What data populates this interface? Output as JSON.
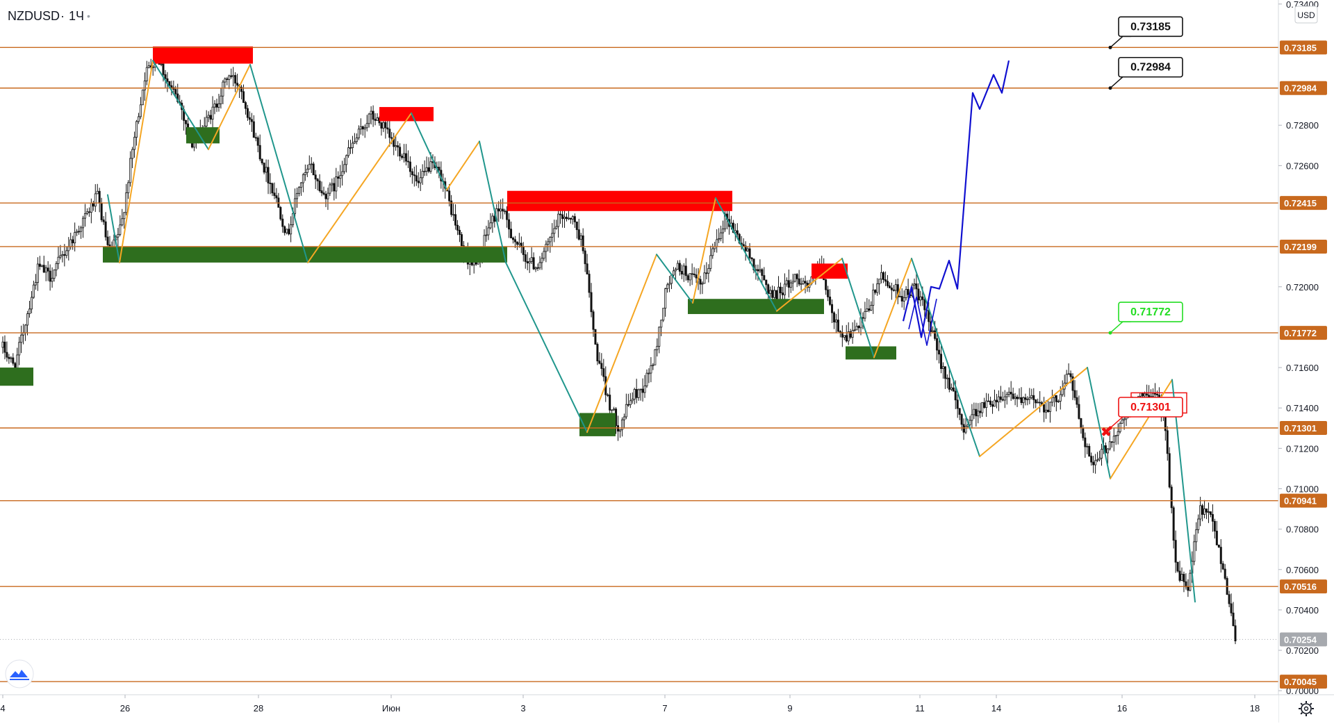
{
  "header": {
    "symbol": "NZDUSD",
    "separator": "·",
    "interval": "1Ч",
    "dot": "•"
  },
  "currency_button": {
    "label": "USD"
  },
  "colors": {
    "level_line": "#c8691e",
    "price_tag_bg": "#c8691e",
    "last_price_tag_bg": "#a6a9ae",
    "supply_zone": "#ff0000",
    "demand_zone": "#2e6e1e",
    "zigzag_up": "#f5a623",
    "zigzag_down": "#20968c",
    "projection": "#1010d0",
    "candle": "#111111",
    "callout_green": "#22dd22",
    "callout_red": "#ee1111",
    "callout_black": "#111111"
  },
  "chart_data": {
    "type": "candlestick",
    "symbol": "NZDUSD",
    "interval": "1Ч",
    "ylim": [
      0.6998,
      0.7342
    ],
    "price_axis_ticks": [
      "0.73400",
      "0.72800",
      "0.72600",
      "0.72000",
      "0.71600",
      "0.71400",
      "0.71200",
      "0.71000",
      "0.70800",
      "0.70600",
      "0.70400",
      "0.70200",
      "0.70000"
    ],
    "time_axis_labels": [
      "4",
      "26",
      "28",
      "Июн",
      "3",
      "7",
      "9",
      "11",
      "14",
      "16",
      "18"
    ],
    "horizontal_levels": [
      "0.73185",
      "0.72984",
      "0.72415",
      "0.72199",
      "0.71772",
      "0.71301",
      "0.70941",
      "0.70516",
      "0.70045"
    ],
    "last_price": "0.70254",
    "callouts": [
      {
        "label": "0.73185",
        "style": "black"
      },
      {
        "label": "0.72984",
        "style": "black"
      },
      {
        "label": "0.71772",
        "style": "green"
      },
      {
        "label": "0.71301",
        "style": "red"
      }
    ],
    "price_path": [
      0.717,
      0.716,
      0.7185,
      0.721,
      0.7205,
      0.7215,
      0.7225,
      0.7235,
      0.7245,
      0.7215,
      0.723,
      0.727,
      0.7305,
      0.7315,
      0.73,
      0.729,
      0.727,
      0.728,
      0.729,
      0.7305,
      0.73,
      0.728,
      0.726,
      0.7245,
      0.7225,
      0.725,
      0.726,
      0.7245,
      0.725,
      0.7265,
      0.7275,
      0.7285,
      0.728,
      0.727,
      0.7265,
      0.725,
      0.726,
      0.7255,
      0.7235,
      0.7215,
      0.721,
      0.723,
      0.724,
      0.7225,
      0.7215,
      0.721,
      0.722,
      0.7235,
      0.7235,
      0.722,
      0.717,
      0.7145,
      0.713,
      0.7145,
      0.715,
      0.7165,
      0.72,
      0.721,
      0.7205,
      0.72,
      0.722,
      0.7235,
      0.7225,
      0.7215,
      0.7205,
      0.7195,
      0.72,
      0.7205,
      0.72,
      0.721,
      0.7185,
      0.7175,
      0.7178,
      0.7188,
      0.7205,
      0.72,
      0.7195,
      0.72,
      0.7185,
      0.7165,
      0.715,
      0.713,
      0.7138,
      0.7142,
      0.7145,
      0.7148,
      0.7142,
      0.7145,
      0.714,
      0.7145,
      0.7158,
      0.713,
      0.711,
      0.712,
      0.7128,
      0.714,
      0.7145,
      0.7148,
      0.7138,
      0.706,
      0.705,
      0.709,
      0.7085,
      0.706,
      0.7026
    ],
    "demand_zones": [
      {
        "price_top": 0.716,
        "price_bottom": 0.7151
      },
      {
        "price_top": 0.72199,
        "price_bottom": 0.7212
      },
      {
        "price_top": 0.7279,
        "price_bottom": 0.7271
      },
      {
        "price_top": 0.71375,
        "price_bottom": 0.7126
      },
      {
        "price_top": 0.7194,
        "price_bottom": 0.71865
      },
      {
        "price_top": 0.71705,
        "price_bottom": 0.7164
      }
    ],
    "supply_zones": [
      {
        "price_top": 0.7319,
        "price_bottom": 0.73105
      },
      {
        "price_top": 0.7289,
        "price_bottom": 0.7282
      },
      {
        "price_top": 0.72475,
        "price_bottom": 0.72375
      },
      {
        "price_top": 0.72115,
        "price_bottom": 0.7204
      },
      {
        "price_top": 0.71475,
        "price_bottom": 0.71375
      }
    ],
    "zigzag_points": [
      0.72455,
      0.7212,
      0.7312,
      0.7268,
      0.731,
      0.7212,
      0.7286,
      0.7248,
      0.7272,
      0.7212,
      0.7128,
      0.7216,
      0.7192,
      0.7244,
      0.7188,
      0.7214,
      0.7165,
      0.7214,
      0.7116,
      0.716,
      0.7105,
      0.7154,
      0.7044
    ],
    "projection_points": [
      0.7183,
      0.72,
      0.7175,
      0.72,
      0.7199,
      0.7213,
      0.7199,
      0.7296,
      0.7288,
      0.7305,
      0.7296,
      0.7312
    ]
  }
}
